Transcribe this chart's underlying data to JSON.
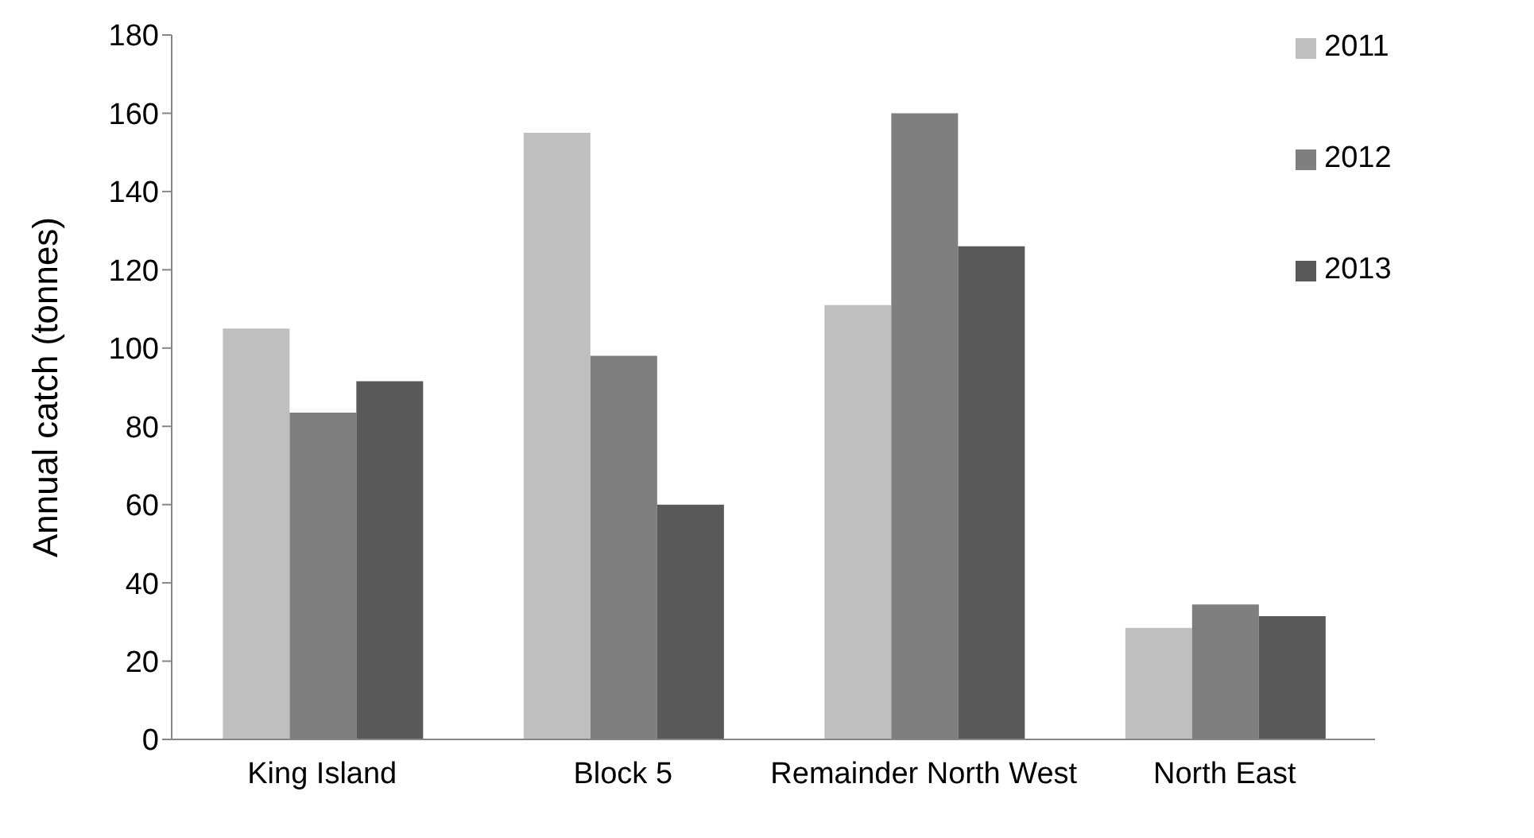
{
  "chart_data": {
    "type": "bar",
    "ylabel": "Annual catch (tonnes)",
    "categories": [
      "King Island",
      "Block 5",
      "Remainder North West",
      "North East"
    ],
    "series": [
      {
        "name": "2011",
        "color": "#bfbfbf",
        "values": [
          105,
          155,
          111,
          28.5
        ]
      },
      {
        "name": "2012",
        "color": "#7f7f7f",
        "values": [
          83.5,
          98,
          160,
          34.5
        ]
      },
      {
        "name": "2013",
        "color": "#595959",
        "values": [
          91.5,
          60,
          126,
          31.5
        ]
      }
    ],
    "ylim": [
      0,
      180
    ],
    "yticks": [
      0,
      20,
      40,
      60,
      80,
      100,
      120,
      140,
      160,
      180
    ],
    "grid": false,
    "legend": "top right"
  }
}
